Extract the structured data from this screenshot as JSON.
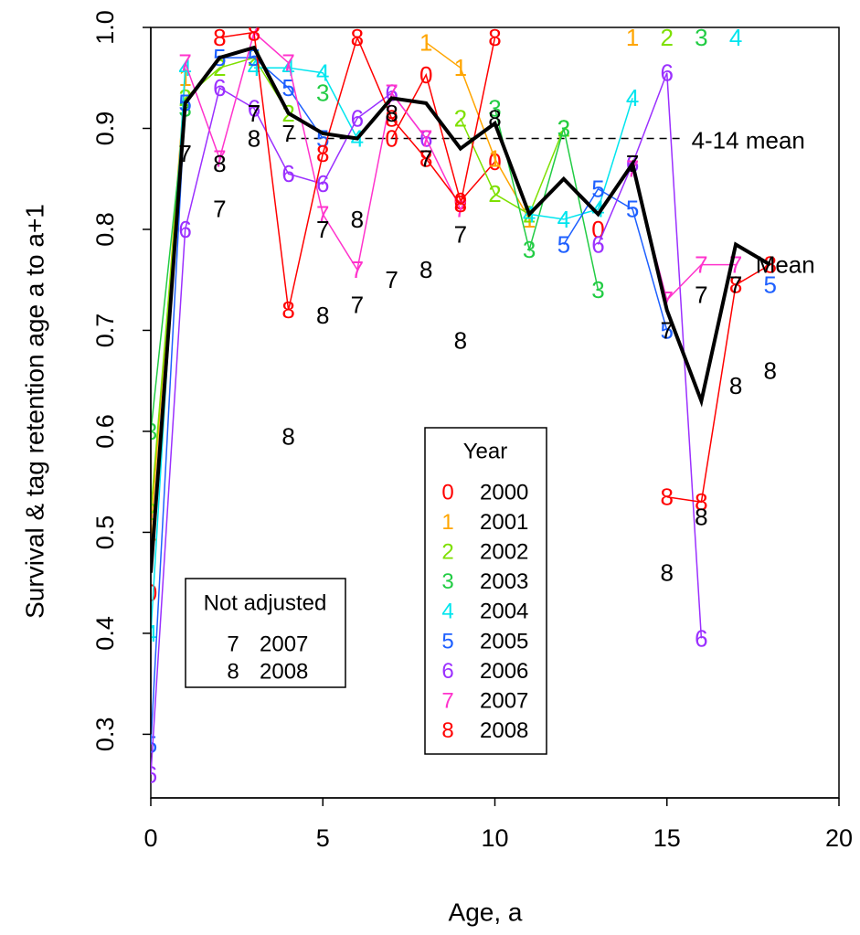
{
  "chart_data": {
    "type": "line",
    "xlabel": "Age, a",
    "ylabel": "Survival & tag retention age a to a+1",
    "x": [
      0,
      1,
      2,
      3,
      4,
      5,
      6,
      7,
      8,
      9,
      10,
      11,
      12,
      13,
      14,
      15,
      16,
      17,
      18
    ],
    "xlim": [
      0,
      20
    ],
    "xticks": [
      0,
      5,
      10,
      15,
      20
    ],
    "ylim": [
      0.237,
      1
    ],
    "yticks": [
      0.3,
      0.4,
      0.5,
      0.6,
      0.7,
      0.8,
      0.9,
      {
        "value": 1,
        "label": "1.0"
      }
    ],
    "legend_title": "Year",
    "series": [
      {
        "name": "2000",
        "marker": "0",
        "color": "#ff0000",
        "values": [
          0.44,
          null,
          null,
          null,
          null,
          null,
          null,
          0.89,
          0.953,
          0.828,
          0.867,
          null,
          null,
          0.8,
          null,
          null,
          null,
          null,
          null
        ]
      },
      {
        "name": "2001",
        "marker": "1",
        "color": "#ffa500",
        "values": [
          0.5,
          0.95,
          null,
          null,
          null,
          null,
          null,
          null,
          0.985,
          0.96,
          0.87,
          0.81,
          null,
          null,
          0.99,
          null,
          null,
          null,
          null
        ]
      },
      {
        "name": "2002",
        "marker": "2",
        "color": "#7ee000",
        "values": [
          0.52,
          0.93,
          0.96,
          0.97,
          0.915,
          null,
          null,
          null,
          null,
          0.91,
          0.835,
          0.815,
          0.9,
          null,
          null,
          0.99,
          null,
          null,
          null
        ]
      },
      {
        "name": "2003",
        "marker": "3",
        "color": "#22cc44",
        "values": [
          0.6,
          0.92,
          null,
          null,
          null,
          0.935,
          null,
          null,
          null,
          null,
          0.92,
          0.78,
          0.9,
          0.74,
          null,
          null,
          0.99,
          null,
          null
        ]
      },
      {
        "name": "2004",
        "marker": "4",
        "color": "#00e5ee",
        "values": [
          0.4,
          0.96,
          null,
          0.96,
          0.96,
          0.955,
          0.89,
          null,
          null,
          null,
          null,
          0.815,
          0.81,
          0.82,
          0.93,
          null,
          null,
          0.99,
          null
        ]
      },
      {
        "name": "2005",
        "marker": "5",
        "color": "#1e60ff",
        "values": [
          0.29,
          0.925,
          0.97,
          0.97,
          0.94,
          0.89,
          null,
          null,
          null,
          null,
          null,
          null,
          0.785,
          0.84,
          0.82,
          0.7,
          null,
          null,
          0.745
        ]
      },
      {
        "name": "2006",
        "marker": "6",
        "color": "#9b30ff",
        "values": [
          0.26,
          0.8,
          0.94,
          0.92,
          0.855,
          0.845,
          0.91,
          0.935,
          0.89,
          null,
          null,
          null,
          null,
          0.785,
          0.865,
          0.955,
          0.395,
          null,
          null
        ]
      },
      {
        "name": "2007",
        "marker": "7",
        "color": "#ff33cc",
        "values": [
          null,
          0.965,
          0.87,
          0.995,
          0.965,
          0.815,
          0.76,
          0.935,
          0.89,
          0.82,
          null,
          null,
          null,
          null,
          0.86,
          0.73,
          0.765,
          0.765,
          null
        ]
      },
      {
        "name": "2008",
        "marker": "8",
        "color": "#ff0000",
        "values": [
          null,
          null,
          0.99,
          0.995,
          0.72,
          0.875,
          0.99,
          0.91,
          0.87,
          0.825,
          0.99,
          null,
          null,
          null,
          null,
          0.535,
          0.53,
          0.745,
          0.765
        ]
      }
    ],
    "mean": {
      "name": "Mean",
      "color": "#000000",
      "values": [
        0.46,
        0.925,
        0.97,
        0.98,
        0.915,
        0.895,
        0.89,
        0.93,
        0.925,
        0.88,
        0.905,
        0.815,
        0.85,
        0.815,
        0.865,
        0.72,
        0.63,
        0.785,
        0.765
      ]
    },
    "reference": {
      "label": "4-14 mean",
      "value": 0.89,
      "color": "#000000"
    },
    "unadjusted": {
      "title": "Not adjusted",
      "color": "#000000",
      "series": [
        {
          "name": "2007",
          "marker": "7",
          "values": [
            null,
            0.875,
            0.82,
            0.915,
            0.895,
            0.8,
            0.725,
            0.75,
            0.87,
            0.795,
            null,
            null,
            null,
            null,
            0.865,
            0.7,
            0.735,
            0.745,
            null
          ]
        },
        {
          "name": "2008",
          "marker": "8",
          "values": [
            null,
            null,
            0.865,
            0.89,
            0.595,
            0.715,
            0.81,
            0.915,
            0.76,
            0.69,
            0.91,
            null,
            null,
            null,
            null,
            0.46,
            0.515,
            0.645,
            0.66
          ]
        }
      ]
    }
  }
}
